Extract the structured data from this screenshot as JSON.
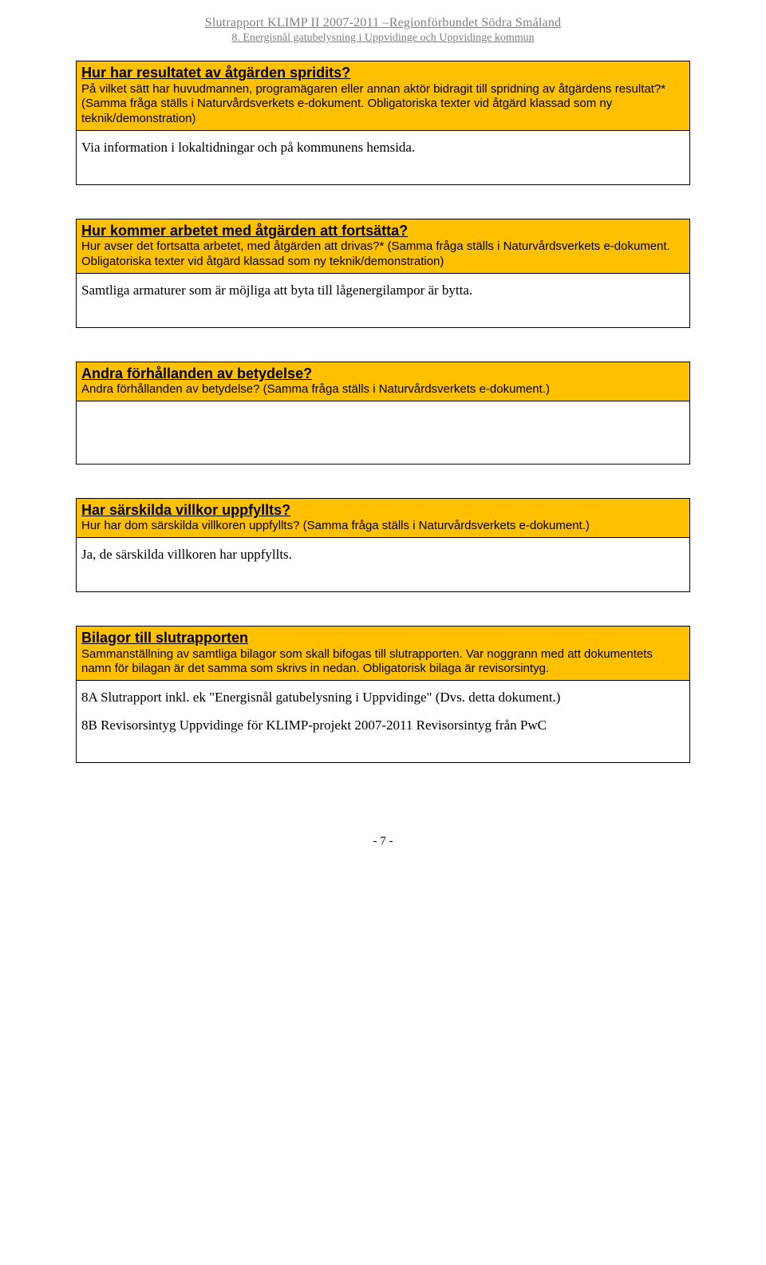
{
  "header": {
    "line1": "Slutrapport  KLIMP II 2007-2011  –Regionförbundet Södra Småland",
    "line2": "8. Energisnål gatubelysning i Uppvidinge och Uppvidinge kommun"
  },
  "sections": [
    {
      "title": "Hur har resultatet av åtgärden spridits?",
      "sub": "På vilket sätt har huvudmannen, programägaren eller annan aktör bidragit till spridning av åtgärdens resultat?* (Samma fråga ställs i Naturvårdsverkets e-dokument. Obligatoriska texter vid åtgärd klassad som ny teknik/demonstration)",
      "body": [
        "Via information i lokaltidningar och på kommunens hemsida."
      ]
    },
    {
      "title": "Hur kommer arbetet med åtgärden att fortsätta?",
      "sub": "Hur avser det fortsatta arbetet, med åtgärden att drivas?* (Samma fråga ställs i Naturvårdsverkets e-dokument. Obligatoriska texter vid åtgärd klassad som ny teknik/demonstration)",
      "body": [
        "Samtliga armaturer som är möjliga att byta till lågenergilampor är bytta."
      ]
    },
    {
      "title": "Andra förhållanden av betydelse?",
      "sub": "Andra förhållanden av betydelse? (Samma fråga ställs i Naturvårdsverkets e-dokument.)",
      "body": []
    },
    {
      "title": "Har särskilda villkor uppfyllts?",
      "sub": "Hur har dom särskilda villkoren uppfyllts? (Samma fråga ställs i Naturvårdsverkets e-dokument.)",
      "body": [
        "Ja, de särskilda villkoren har uppfyllts."
      ]
    },
    {
      "title": "Bilagor till slutrapporten",
      "sub": "Sammanställning av samtliga bilagor som skall bifogas till slutrapporten.\nVar noggrann med att dokumentets namn för bilagan är det samma som skrivs in nedan.\nObligatorisk bilaga är revisorsintyg.",
      "body": [
        "8A Slutrapport inkl. ek \"Energisnål gatubelysning i Uppvidinge\" (Dvs. detta dokument.)",
        "8B Revisorsintyg Uppvidinge för KLIMP-projekt 2007-2011 Revisorsintyg från PwC"
      ]
    }
  ],
  "footer": "- 7 -",
  "colors": {
    "highlight_bg": "#ffc000",
    "border": "#000000",
    "header_text": "#808080",
    "body_bg": "#ffffff"
  }
}
